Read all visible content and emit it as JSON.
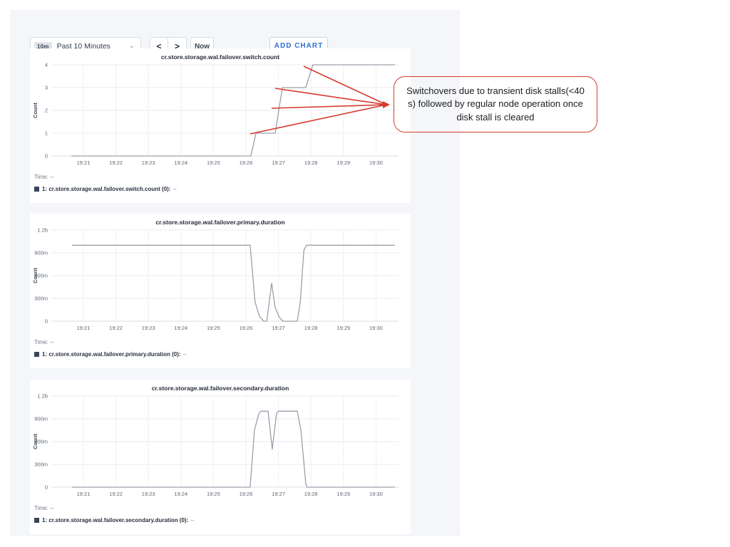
{
  "colors": {
    "panel_bg": "#f4f6f9",
    "card_bg": "#ffffff",
    "line": "#9aa0aa",
    "grid": "#e9ebef",
    "grid_axis": "#d9dcdf",
    "grid_vertical": "#eef0f3",
    "accent_blue": "#2f6fd0",
    "annotation_red": "#d43b2d",
    "legend_swatch": "#39445a"
  },
  "toolbar": {
    "time_badge": "10m",
    "time_range_label": "Past 10 Minutes",
    "dropdown_caret": "⌄",
    "prev_label": "<",
    "next_label": ">",
    "now_label": "Now",
    "add_chart_label": "ADD CHART"
  },
  "annotation": {
    "text": "Switchovers due to transient disk stalls(<40 s) followed by regular node operation once disk stall is cleared",
    "arrow_tails": [
      [
        426,
        93
      ],
      [
        386,
        124
      ],
      [
        381,
        152
      ],
      [
        351,
        188
      ]
    ],
    "arrow_tip": [
      545,
      147
    ]
  },
  "chart_data": [
    {
      "type": "line",
      "title": "cr.store.storage.wal.failover.switch.count",
      "ylabel": "Count",
      "x_axis": {
        "tick_labels": [
          "19:21",
          "19:22",
          "19:23",
          "19:24",
          "19:25",
          "19:26",
          "19:27",
          "19:28",
          "19:29",
          "19:30"
        ]
      },
      "y_axis": {
        "tick_labels": [
          "4",
          "3",
          "2",
          "1",
          "0"
        ],
        "max": 4,
        "min": 0
      },
      "series": [
        {
          "name": "1: cr.store.storage.wal.failover.switch.count (0):",
          "points": [
            [
              0.63,
              0
            ],
            [
              6.15,
              0
            ],
            [
              6.31,
              1
            ],
            [
              6.9,
              1
            ],
            [
              7.12,
              3
            ],
            [
              7.84,
              3
            ],
            [
              8.06,
              4
            ],
            [
              10.58,
              4
            ]
          ]
        }
      ],
      "time_label": "Time:",
      "time_value": "--",
      "series_value": "--"
    },
    {
      "type": "line",
      "title": "cr.store.storage.wal.failover.primary.duration",
      "ylabel": "Count",
      "x_axis": {
        "tick_labels": [
          "19:21",
          "19:22",
          "19:23",
          "19:24",
          "19:25",
          "19:26",
          "19:27",
          "19:28",
          "19:29",
          "19:30"
        ]
      },
      "y_axis": {
        "tick_labels": [
          "1.2b",
          "900m",
          "600m",
          "300m",
          "0"
        ],
        "max": 1.2,
        "min": 0
      },
      "series": [
        {
          "name": "1: cr.store.storage.wal.failover.primary.duration (0):",
          "points": [
            [
              0.65,
              1
            ],
            [
              6.13,
              1
            ],
            [
              6.28,
              0.25
            ],
            [
              6.42,
              0.06
            ],
            [
              6.55,
              0
            ],
            [
              6.64,
              0
            ],
            [
              6.79,
              0.5
            ],
            [
              6.9,
              0.18
            ],
            [
              7.03,
              0.05
            ],
            [
              7.14,
              0
            ],
            [
              7.58,
              0
            ],
            [
              7.67,
              0.25
            ],
            [
              7.78,
              0.93
            ],
            [
              7.86,
              1
            ],
            [
              10.58,
              1
            ]
          ]
        }
      ],
      "time_label": "Time:",
      "time_value": "--",
      "series_value": "--"
    },
    {
      "type": "line",
      "title": "cr.store.storage.wal.failover.secondary.duration",
      "ylabel": "Count",
      "x_axis": {
        "tick_labels": [
          "19:21",
          "19:22",
          "19:23",
          "19:24",
          "19:25",
          "19:26",
          "19:27",
          "19:28",
          "19:29",
          "19:30"
        ]
      },
      "y_axis": {
        "tick_labels": [
          "1.2b",
          "900m",
          "600m",
          "300m",
          "0"
        ],
        "max": 1.2,
        "min": 0
      },
      "series": [
        {
          "name": "1: cr.store.storage.wal.failover.secondary.duration (0):",
          "points": [
            [
              0.65,
              0
            ],
            [
              6.13,
              0
            ],
            [
              6.26,
              0.75
            ],
            [
              6.4,
              0.97
            ],
            [
              6.46,
              1
            ],
            [
              6.68,
              1
            ],
            [
              6.81,
              0.5
            ],
            [
              6.94,
              0.97
            ],
            [
              7.0,
              1
            ],
            [
              7.58,
              1
            ],
            [
              7.69,
              0.75
            ],
            [
              7.84,
              0.05
            ],
            [
              7.88,
              0
            ],
            [
              10.58,
              0
            ]
          ]
        }
      ],
      "time_label": "Time:",
      "time_value": "--",
      "series_value": "--"
    }
  ]
}
